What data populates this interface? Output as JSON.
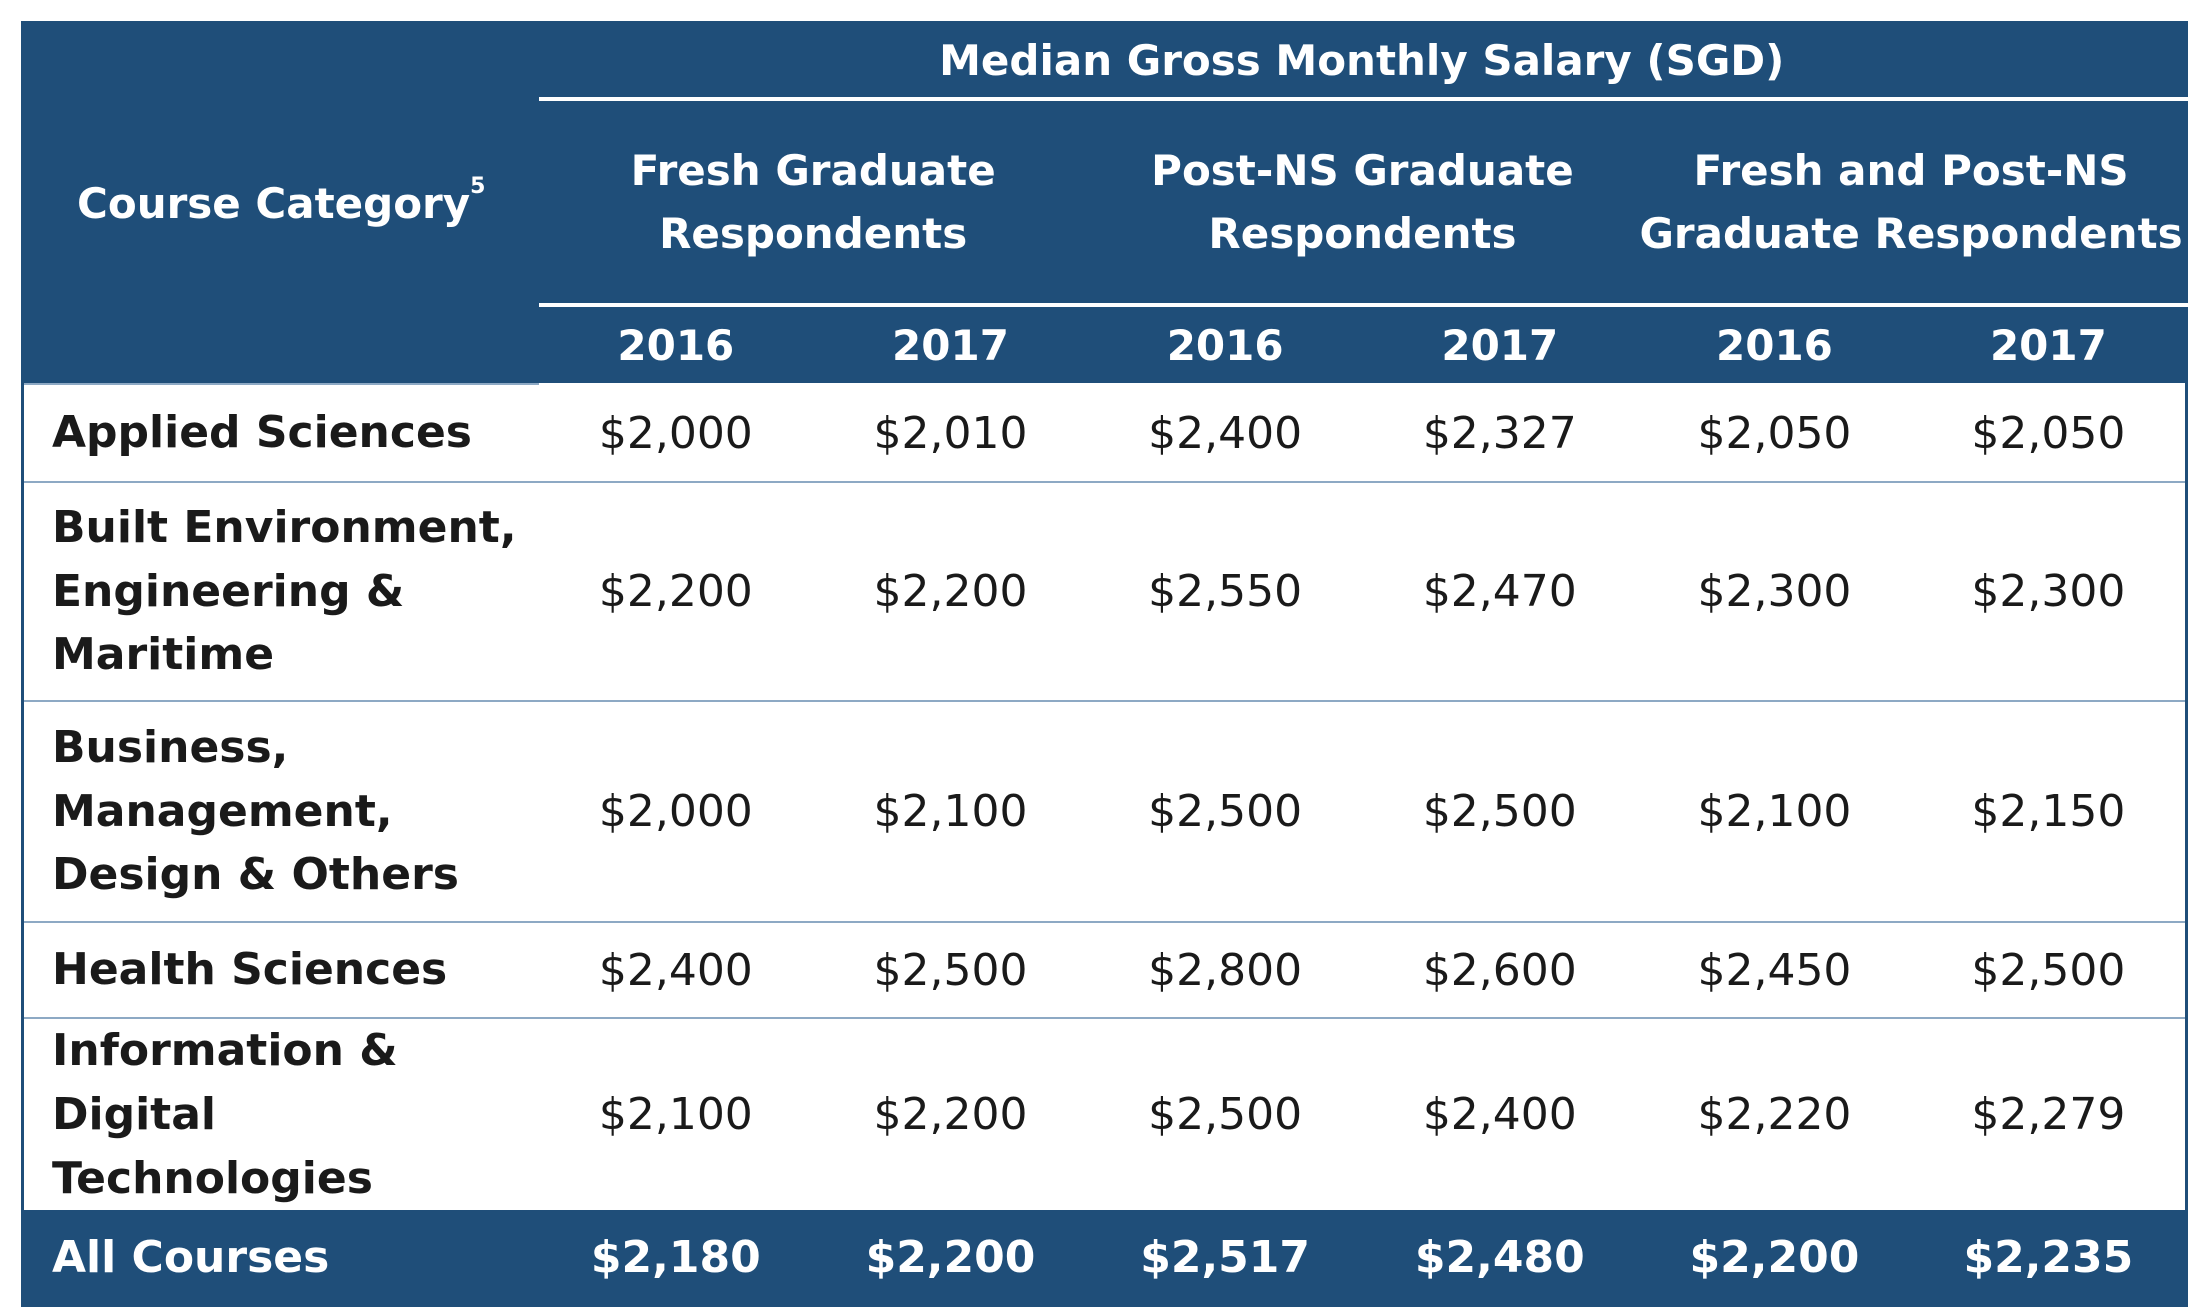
{
  "header": {
    "category_label": "Course Category",
    "category_footnote": "5",
    "main_title": "Median Gross Monthly Salary (SGD)",
    "groups": [
      {
        "label": "Fresh Graduate Respondents"
      },
      {
        "label": "Post-NS Graduate Respondents"
      },
      {
        "label": "Fresh and Post-NS Graduate Respondents"
      }
    ],
    "years": [
      "2016",
      "2017",
      "2016",
      "2017",
      "2016",
      "2017"
    ]
  },
  "rows": [
    {
      "category": "Applied Sciences",
      "values": [
        "$2,000",
        "$2,010",
        "$2,400",
        "$2,327",
        "$2,050",
        "$2,050"
      ]
    },
    {
      "category": "Built Environment, Engineering & Maritime",
      "values": [
        "$2,200",
        "$2,200",
        "$2,550",
        "$2,470",
        "$2,300",
        "$2,300"
      ]
    },
    {
      "category": "Business, Management, Design & Others",
      "values": [
        "$2,000",
        "$2,100",
        "$2,500",
        "$2,500",
        "$2,100",
        "$2,150"
      ]
    },
    {
      "category": "Health Sciences",
      "values": [
        "$2,400",
        "$2,500",
        "$2,800",
        "$2,600",
        "$2,450",
        "$2,500"
      ]
    },
    {
      "category": "Information & Digital Technologies",
      "values": [
        "$2,100",
        "$2,200",
        "$2,500",
        "$2,400",
        "$2,220",
        "$2,279"
      ]
    }
  ],
  "total": {
    "category": "All Courses",
    "values": [
      "$2,180",
      "$2,200",
      "$2,517",
      "$2,480",
      "$2,200",
      "$2,235"
    ]
  },
  "colors": {
    "header_bg": "#1f4e79",
    "header_text": "#ffffff",
    "row_divider": "#8da9c4"
  }
}
